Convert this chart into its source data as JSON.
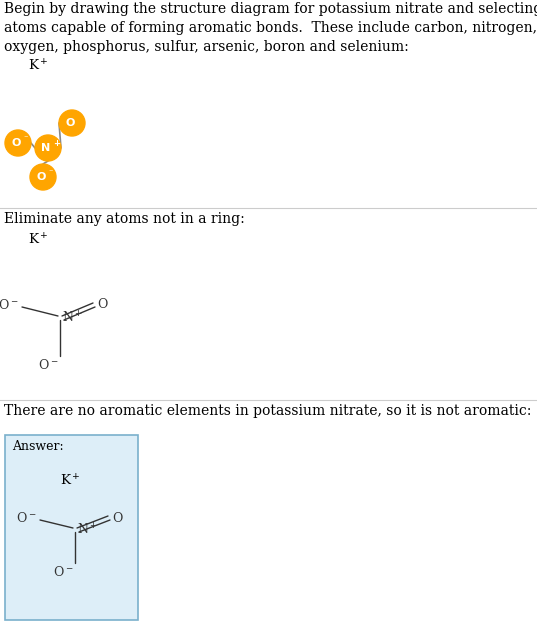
{
  "bg_color": "#ffffff",
  "text_color": "#000000",
  "atom_color": "#FFA500",
  "atom_text_color": "#ffffff",
  "section1_text": "Begin by drawing the structure diagram for potassium nitrate and selecting those\natoms capable of forming aromatic bonds.  These include carbon, nitrogen,\noxygen, phosphorus, sulfur, arsenic, boron and selenium:",
  "section2_text": "Eliminate any atoms not in a ring:",
  "section3_text": "There are no aromatic elements in potassium nitrate, so it is not aromatic:",
  "answer_label": "Answer:",
  "answer_bg": "#ddeef8",
  "answer_border": "#7ab0cc",
  "font_size_main": 10.0,
  "font_size_label": 9.5,
  "sep_color": "#cccccc",
  "bond_color": "#888888",
  "text_dark": "#333333"
}
